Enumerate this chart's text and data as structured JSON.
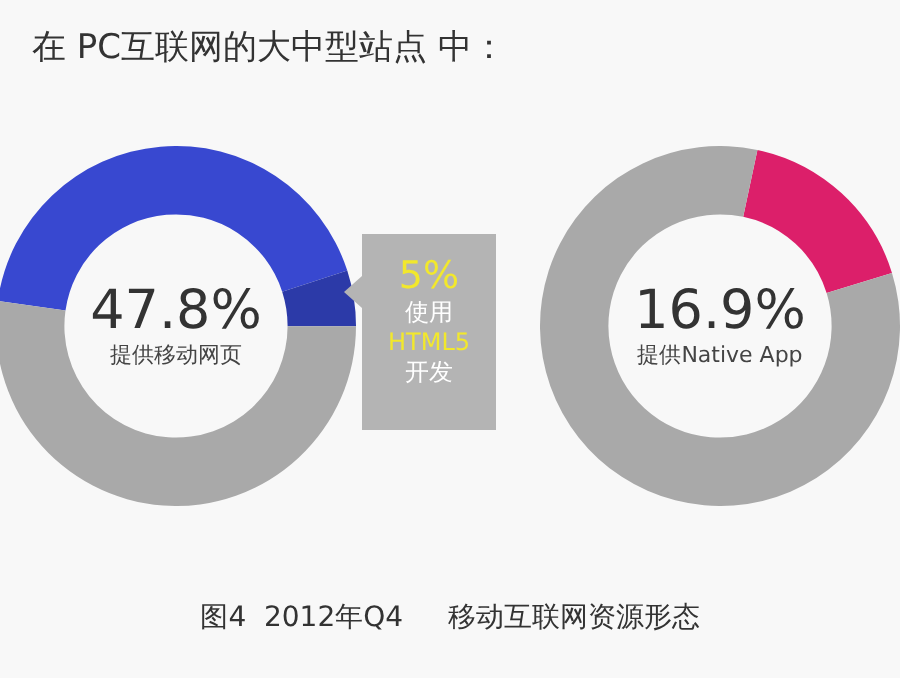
{
  "chart_data": [
    {
      "type": "donut",
      "title": "在 PC互联网的大中型站点 中：",
      "categories": [
        null,
        "使用 HTML5 开发",
        null
      ],
      "values": [
        42.8,
        5,
        52.2
      ],
      "colors": [
        "#3848d0",
        "#2c3aa8",
        "#a9a9a9"
      ],
      "value_labels": [
        null,
        "5%",
        null
      ],
      "annotations": [
        "47.8%",
        "提供移动网页",
        "图4  2012年Q4     移动互联网资源形态"
      ]
    },
    {
      "type": "donut",
      "categories": [
        null,
        null
      ],
      "values": [
        16.9,
        83.1
      ],
      "colors": [
        "#dc1f6a",
        "#a9a9a9"
      ],
      "annotations": [
        "16.9%",
        "提供Native App"
      ]
    }
  ]
}
